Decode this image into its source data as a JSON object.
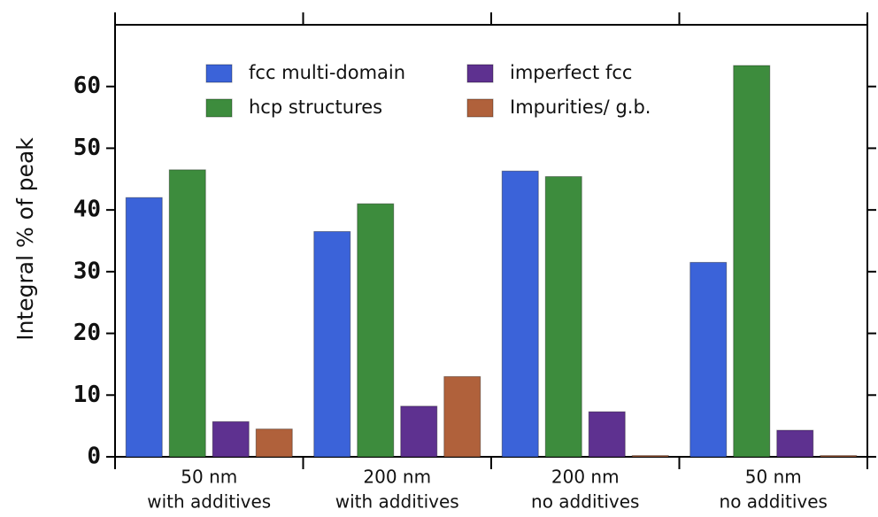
{
  "chart_data": {
    "type": "bar",
    "y_label": "Integral % of peak",
    "categories": [
      [
        "50 nm",
        "with additives"
      ],
      [
        "200 nm",
        "with additives"
      ],
      [
        "200 nm",
        "no additives"
      ],
      [
        "50 nm",
        "no additives"
      ]
    ],
    "series": [
      {
        "name": "fcc multi-domain",
        "color": "#3b63d9",
        "values": [
          42,
          36.5,
          46.3,
          31.5
        ]
      },
      {
        "name": "hcp structures",
        "color": "#3d8c3d",
        "values": [
          46.5,
          41,
          45.4,
          63.4
        ]
      },
      {
        "name": "imperfect fcc",
        "color": "#5e3190",
        "values": [
          5.7,
          8.2,
          7.3,
          4.3
        ]
      },
      {
        "name": "Impurities/ g.b.",
        "color": "#b0613b",
        "values": [
          4.5,
          13,
          0.2,
          0.2
        ]
      }
    ],
    "ylim": [
      0,
      70
    ],
    "yticks": [
      0,
      10,
      20,
      30,
      40,
      50,
      60
    ]
  }
}
